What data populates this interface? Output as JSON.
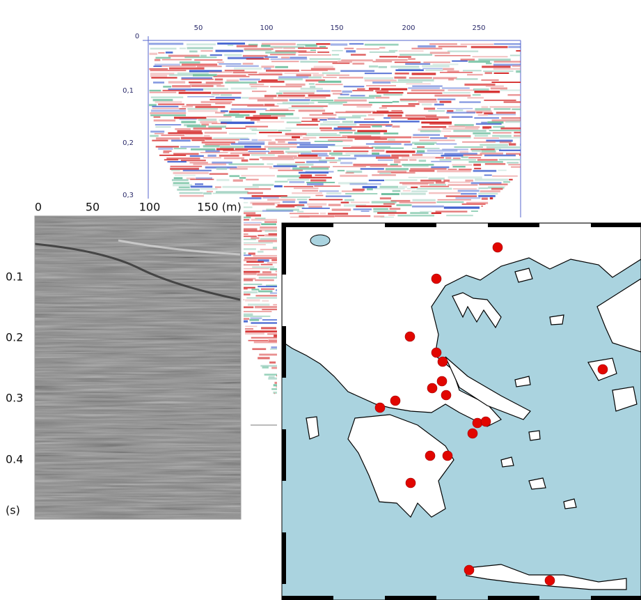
{
  "radar_section": {
    "x_ticks": [
      "0",
      "50",
      "100",
      "150",
      "200",
      "250"
    ],
    "y_ticks": [
      "0,1",
      "0,2",
      "0,3"
    ]
  },
  "seismic_section": {
    "x_ticks": [
      "0",
      "50",
      "100",
      "150 (m)"
    ],
    "y_ticks": [
      "0.1",
      "0.2",
      "0.3",
      "0.4",
      "(s)"
    ]
  }
}
